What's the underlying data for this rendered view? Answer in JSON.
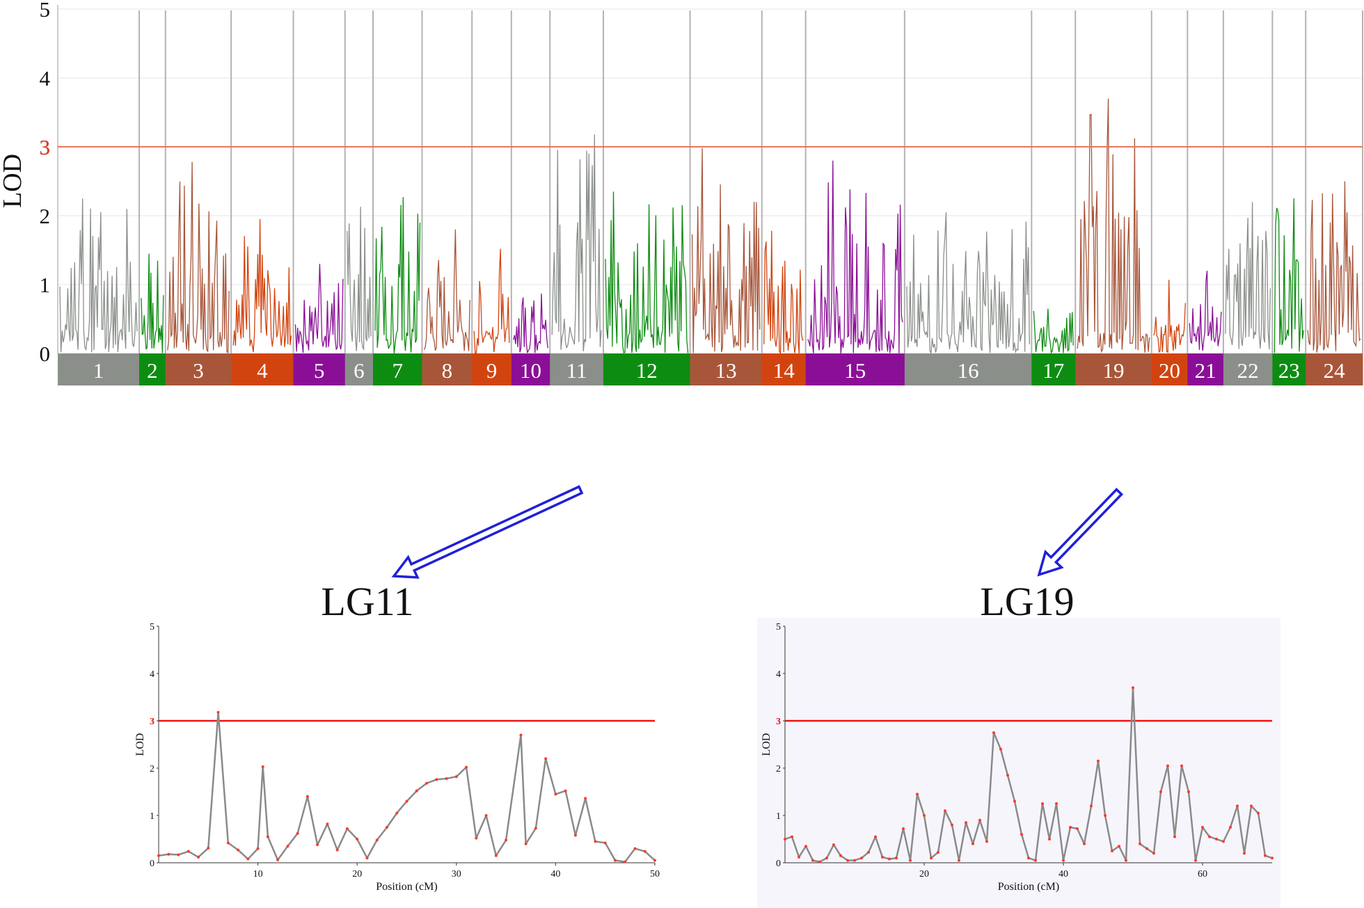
{
  "colors": {
    "grey": "#8a8f8a",
    "green": "#0d8c12",
    "brown": "#a8563a",
    "orange": "#d2440f",
    "purple": "#8a0f96",
    "threshold_main": "#e8755a",
    "threshold_sub": "#ee1111",
    "arrow": "#2020d8",
    "point": "#ff3a2a",
    "subline": "#8a8a8a"
  },
  "chart_data": [
    {
      "type": "line",
      "ylabel": "LOD",
      "ylim": [
        0,
        5
      ],
      "yticks": [
        "0",
        "1",
        "2",
        "3",
        "4",
        "5"
      ],
      "threshold": 3,
      "threshold_label": "3",
      "linkage_groups": [
        {
          "label": "1",
          "color": "grey",
          "peak": 2.25,
          "span": 93
        },
        {
          "label": "2",
          "color": "green",
          "peak": 1.45,
          "span": 30
        },
        {
          "label": "3",
          "color": "brown",
          "peak": 2.78,
          "span": 75
        },
        {
          "label": "4",
          "color": "orange",
          "peak": 1.95,
          "span": 71
        },
        {
          "label": "5",
          "color": "purple",
          "peak": 1.3,
          "span": 59
        },
        {
          "label": "6",
          "color": "grey",
          "peak": 2.13,
          "span": 32
        },
        {
          "label": "7",
          "color": "green",
          "peak": 2.27,
          "span": 56
        },
        {
          "label": "8",
          "color": "brown",
          "peak": 1.8,
          "span": 57
        },
        {
          "label": "9",
          "color": "orange",
          "peak": 1.52,
          "span": 45
        },
        {
          "label": "10",
          "color": "purple",
          "peak": 0.87,
          "span": 44
        },
        {
          "label": "11",
          "color": "grey",
          "peak": 3.18,
          "span": 61
        },
        {
          "label": "12",
          "color": "green",
          "peak": 2.35,
          "span": 99
        },
        {
          "label": "13",
          "color": "brown",
          "peak": 2.98,
          "span": 82
        },
        {
          "label": "14",
          "color": "orange",
          "peak": 1.78,
          "span": 50
        },
        {
          "label": "15",
          "color": "purple",
          "peak": 2.8,
          "span": 113
        },
        {
          "label": "16",
          "color": "grey",
          "peak": 2.05,
          "span": 145
        },
        {
          "label": "17",
          "color": "green",
          "peak": 0.65,
          "span": 50
        },
        {
          "label": "19",
          "color": "brown",
          "peak": 3.7,
          "span": 87
        },
        {
          "label": "20",
          "color": "orange",
          "peak": 1.07,
          "span": 41
        },
        {
          "label": "21",
          "color": "purple",
          "peak": 1.2,
          "span": 41
        },
        {
          "label": "22",
          "color": "grey",
          "peak": 2.2,
          "span": 56
        },
        {
          "label": "23",
          "color": "green",
          "peak": 2.25,
          "span": 38
        },
        {
          "label": "24",
          "color": "brown",
          "peak": 2.5,
          "span": 65
        }
      ]
    },
    {
      "type": "line",
      "title": "LG11",
      "xlabel": "Position (cM)",
      "ylabel": "LOD",
      "xlim": [
        0,
        50
      ],
      "ylim": [
        0,
        5
      ],
      "xticks": [
        10,
        20,
        30,
        40,
        50
      ],
      "yticks": [
        0,
        1,
        2,
        3,
        4,
        5
      ],
      "threshold": 3,
      "x": [
        0,
        1,
        2,
        3,
        4,
        5,
        6,
        7,
        8,
        9,
        10,
        10.5,
        11,
        12,
        13,
        14,
        15,
        16,
        17,
        18,
        19,
        20,
        21,
        22,
        23,
        24,
        25,
        26,
        27,
        28,
        29,
        30,
        31,
        32,
        33,
        34,
        35,
        36.5,
        37,
        38,
        39,
        40,
        41,
        42,
        43,
        44,
        45,
        46,
        47,
        48,
        49,
        50
      ],
      "y": [
        0.15,
        0.18,
        0.17,
        0.24,
        0.12,
        0.31,
        3.18,
        0.42,
        0.27,
        0.08,
        0.3,
        2.03,
        0.55,
        0.06,
        0.35,
        0.62,
        1.4,
        0.38,
        0.82,
        0.27,
        0.72,
        0.5,
        0.1,
        0.48,
        0.75,
        1.05,
        1.3,
        1.52,
        1.68,
        1.76,
        1.78,
        1.82,
        2.02,
        0.52,
        1.0,
        0.15,
        0.48,
        2.7,
        0.4,
        0.73,
        2.2,
        1.45,
        1.52,
        0.58,
        1.36,
        0.45,
        0.42,
        0.05,
        0.02,
        0.3,
        0.24,
        0.05
      ]
    },
    {
      "type": "line",
      "title": "LG19",
      "xlabel": "Position (cM)",
      "ylabel": "LOD",
      "xlim": [
        0,
        70
      ],
      "ylim": [
        0,
        5
      ],
      "xticks": [
        20,
        40,
        60
      ],
      "yticks": [
        0,
        1,
        2,
        3,
        4,
        5
      ],
      "threshold": 3,
      "x": [
        0,
        1,
        2,
        3,
        4,
        5,
        6,
        7,
        8,
        9,
        10,
        11,
        12,
        13,
        14,
        15,
        16,
        17,
        18,
        19,
        20,
        21,
        22,
        23,
        24,
        25,
        26,
        27,
        28,
        29,
        30,
        31,
        32,
        33,
        34,
        35,
        36,
        37,
        38,
        39,
        40,
        41,
        42,
        43,
        44,
        45,
        46,
        47,
        48,
        49,
        50,
        51,
        52,
        53,
        54,
        55,
        56,
        57,
        58,
        59,
        60,
        61,
        62,
        63,
        64,
        65,
        66,
        67,
        68,
        69,
        70
      ],
      "y": [
        0.5,
        0.55,
        0.12,
        0.35,
        0.05,
        0.02,
        0.1,
        0.38,
        0.15,
        0.05,
        0.05,
        0.1,
        0.22,
        0.55,
        0.12,
        0.08,
        0.1,
        0.72,
        0.05,
        1.45,
        1.0,
        0.1,
        0.22,
        1.1,
        0.8,
        0.05,
        0.85,
        0.4,
        0.9,
        0.45,
        2.75,
        2.4,
        1.85,
        1.3,
        0.6,
        0.1,
        0.05,
        1.25,
        0.5,
        1.25,
        0.05,
        0.75,
        0.72,
        0.4,
        1.2,
        2.15,
        1.0,
        0.25,
        0.35,
        0.05,
        3.7,
        0.4,
        0.3,
        0.2,
        1.5,
        2.05,
        0.55,
        2.05,
        1.5,
        0.05,
        0.75,
        0.55,
        0.5,
        0.45,
        0.75,
        1.2,
        0.2,
        1.2,
        1.05,
        0.15,
        0.1
      ]
    }
  ]
}
